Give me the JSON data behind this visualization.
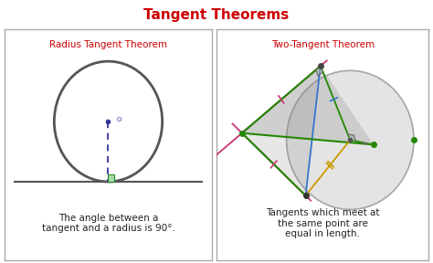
{
  "title": "Tangent Theorems",
  "title_color": "#cc0000",
  "title_fontsize": 11,
  "bg_color": "#ffffff",
  "panel_border_color": "#aaaaaa",
  "left_title": "Radius Tangent Theorem",
  "right_title": "Two-Tangent Theorem",
  "subtitle_color": "#cc0000",
  "left_text": "The angle between a\ntangent and a radius is 90°.",
  "right_text": "Tangents which meet at\nthe same point are\nequal in length.",
  "body_text_color": "#222222",
  "circle_color": "#555555",
  "dashed_color": "#333399",
  "tangent_line_color": "#555555"
}
